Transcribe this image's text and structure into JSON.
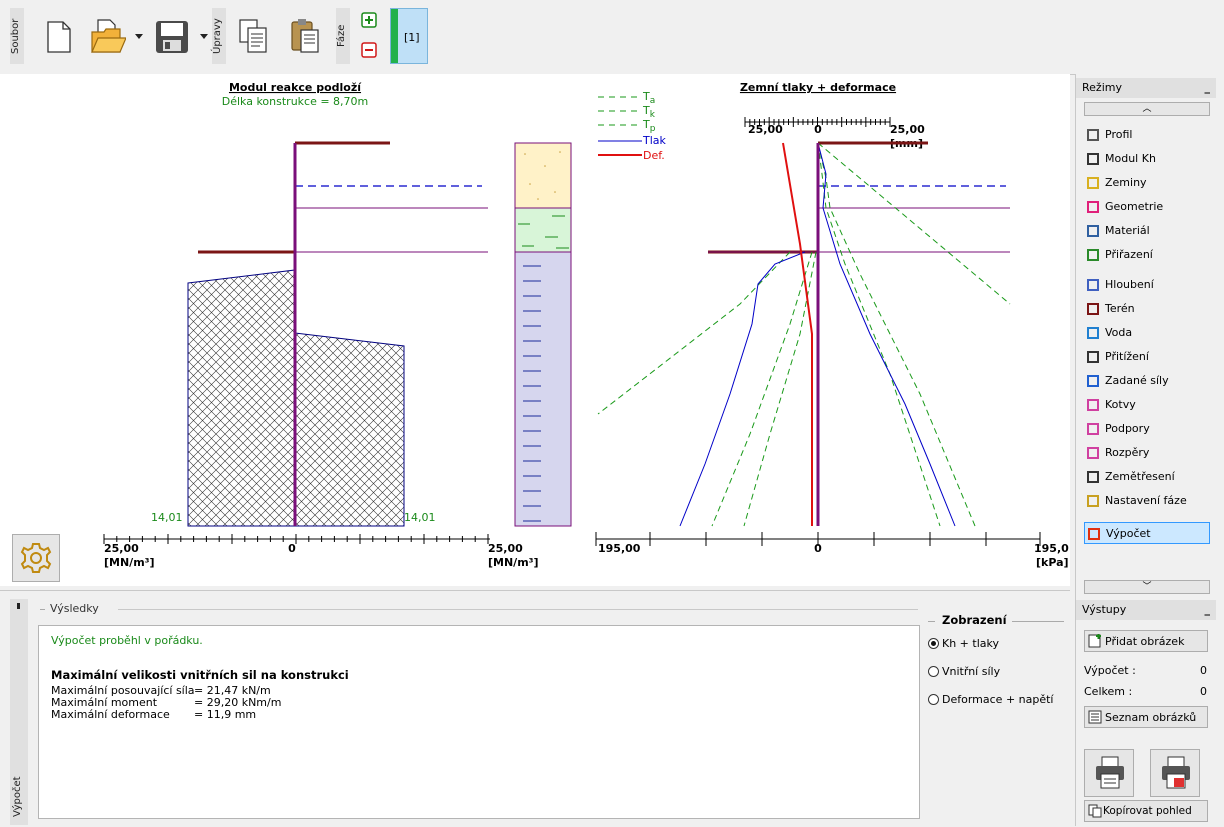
{
  "toolbar": {
    "file_label": "Soubor",
    "edit_label": "Úpravy",
    "phase_label": "Fáze",
    "phase_tab": "[1]"
  },
  "chart_left": {
    "title": "Modul reakce podloží",
    "subtitle": "Délka konstrukce = 8,70m",
    "val_left": "14,01",
    "val_right": "14,01",
    "axis_left": "25,00",
    "axis_left_unit": "[MN/m³]",
    "axis_zero": "0",
    "axis_right": "25,00",
    "axis_right_unit": "[MN/m³]"
  },
  "legend": {
    "ta": "T",
    "ta_sub": "a",
    "tk": "T",
    "tk_sub": "k",
    "tp": "T",
    "tp_sub": "p",
    "tlak": "Tlak",
    "def": "Def."
  },
  "chart_right": {
    "title": "Zemní tlaky + deformace",
    "top_left": "25,00",
    "top_zero": "0",
    "top_right": "25,00",
    "top_unit": "[mm]",
    "axis_left": "195,00",
    "axis_zero": "0",
    "axis_right": "195,0",
    "axis_unit": "[kPa]"
  },
  "modes": {
    "title": "Režimy",
    "items": [
      "Profil",
      "Modul Kh",
      "Zeminy",
      "Geometrie",
      "Materiál",
      "Přiřazení",
      "Hloubení",
      "Terén",
      "Voda",
      "Přitížení",
      "Zadané síly",
      "Kotvy",
      "Podpory",
      "Rozpěry",
      "Zemětřesení",
      "Nastavení fáze",
      "Výpočet"
    ]
  },
  "outputs": {
    "title": "Výstupy",
    "add_image": "Přidat obrázek",
    "calc_label": "Výpočet :",
    "calc_value": "0",
    "total_label": "Celkem :",
    "total_value": "0",
    "list_images": "Seznam obrázků",
    "copy_view": "Kopírovat pohled"
  },
  "results": {
    "frame_label": "Výsledky",
    "status": "Výpočet proběhl v pořádku.",
    "heading": "Maximální velikosti vnitřních sil na konstrukci",
    "rows": [
      {
        "label": "Maximální posouvající síla",
        "value": "=  21,47  kN/m"
      },
      {
        "label": "Maximální moment",
        "value": "=  29,20  kNm/m"
      },
      {
        "label": "Maximální deformace",
        "value": "=    11,9  mm"
      }
    ],
    "side_tab": "Výpočet"
  },
  "display": {
    "title": "Zobrazení",
    "options": [
      "Kh + tlaky",
      "Vnitřní síly",
      "Deformace + napětí"
    ],
    "selected": "Kh + tlaky"
  },
  "colors": {
    "wall": "#7a0f7a",
    "terrain": "#7b1515",
    "water": "#0000c8",
    "pressure": "#0000c8",
    "earth_dash": "#1a9a1a",
    "deformation": "#e01010",
    "hatch": "#000080",
    "soil1": "#fff2c8",
    "soil2": "#d8f5d8",
    "soil3": "#d6d6ee"
  }
}
